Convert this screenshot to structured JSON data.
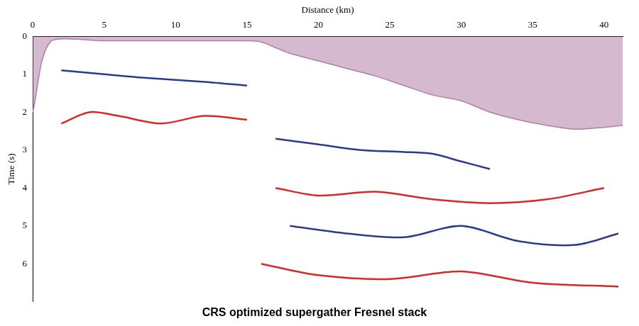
{
  "chart_data": {
    "type": "line",
    "title": "CRS optimized supergather Fresnel stack",
    "x_label": "Distance (km)",
    "y_label": "Time (s)",
    "xlim": [
      0,
      41.3
    ],
    "xticks": [
      0,
      5,
      10,
      15,
      20,
      25,
      30,
      35,
      40
    ],
    "ylim": [
      0,
      7
    ],
    "yticks": [
      0,
      1,
      2,
      3,
      4,
      5,
      6
    ],
    "grid": false,
    "series": [
      {
        "type": "area",
        "color": "#b07fa8",
        "x": [
          0,
          1.3,
          5,
          10,
          15,
          16,
          17,
          18,
          20,
          22,
          24,
          26,
          28,
          30,
          32,
          34,
          36,
          38,
          40,
          41.3
        ],
        "values": [
          2.0,
          0.12,
          0.12,
          0.12,
          0.12,
          0.15,
          0.3,
          0.45,
          0.65,
          0.85,
          1.05,
          1.3,
          1.55,
          1.7,
          2.0,
          2.2,
          2.35,
          2.45,
          2.4,
          2.35
        ]
      },
      {
        "type": "line",
        "color": "#2b3a8c",
        "x": [
          2,
          5,
          8,
          12,
          15
        ],
        "values": [
          0.9,
          1.0,
          1.1,
          1.2,
          1.3
        ]
      },
      {
        "type": "line",
        "color": "#d62828",
        "x": [
          2,
          4,
          6,
          9,
          12,
          15
        ],
        "values": [
          2.3,
          2.0,
          2.1,
          2.3,
          2.1,
          2.2
        ]
      },
      {
        "type": "line",
        "color": "#2b3a8c",
        "x": [
          17,
          20,
          23,
          26,
          28,
          30,
          32
        ],
        "values": [
          2.7,
          2.85,
          3.0,
          3.05,
          3.1,
          3.3,
          3.5
        ]
      },
      {
        "type": "line",
        "color": "#d62828",
        "x": [
          17,
          20,
          24,
          28,
          32,
          36,
          40
        ],
        "values": [
          4.0,
          4.2,
          4.1,
          4.3,
          4.4,
          4.3,
          4.0
        ]
      },
      {
        "type": "line",
        "color": "#2b3a8c",
        "x": [
          18,
          22,
          26,
          30,
          34,
          38,
          41
        ],
        "values": [
          5.0,
          5.2,
          5.3,
          5.0,
          5.4,
          5.5,
          5.2
        ]
      },
      {
        "type": "line",
        "color": "#d62828",
        "x": [
          16,
          20,
          25,
          30,
          35,
          41
        ],
        "values": [
          6.0,
          6.3,
          6.4,
          6.2,
          6.5,
          6.6
        ]
      }
    ]
  }
}
